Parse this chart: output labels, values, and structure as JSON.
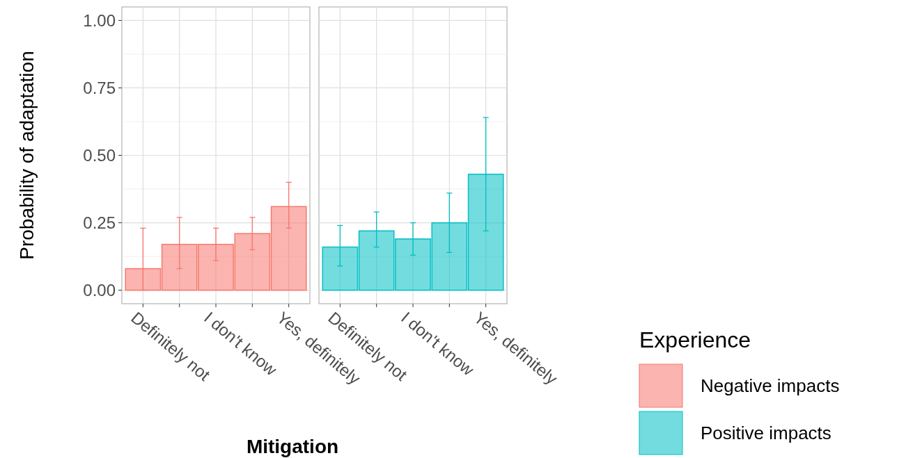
{
  "chart_data": [
    {
      "type": "bar",
      "ylabel": "Probability of adaptation",
      "xlabel": "Mitigation",
      "legend_title": "Experience",
      "legend": "bottom right",
      "grid": true,
      "categories": [
        "Definitely not",
        null,
        "I don't know",
        null,
        "Yes, definitely"
      ],
      "ylim": [
        -0.05,
        1.05
      ],
      "yticks": [
        {
          "value": 0,
          "label": "0.00"
        },
        {
          "value": 0.25,
          "label": "0.25"
        },
        {
          "value": 0.5,
          "label": "0.50"
        },
        {
          "value": 0.75,
          "label": "0.75"
        },
        {
          "value": 1,
          "label": "1.00"
        }
      ],
      "series": [
        {
          "name": "Negative impacts",
          "color": "#f8766d",
          "values": [
            0.08,
            0.17,
            0.17,
            0.21,
            0.31
          ],
          "errors": [
            [
              0,
              0.23
            ],
            [
              0.08,
              0.27
            ],
            [
              0.11,
              0.23
            ],
            [
              0.15,
              0.27
            ],
            [
              0.23,
              0.4
            ]
          ]
        }
      ]
    },
    {
      "type": "bar",
      "legend": "bottom right",
      "grid": true,
      "tick_labels": "x",
      "categories": [
        "Definitely not",
        null,
        "I don't know",
        null,
        "Yes, definitely"
      ],
      "ylim": [
        -0.05,
        1.05
      ],
      "yticks": [
        0,
        0.25,
        0.5,
        0.75,
        1
      ],
      "series": [
        {
          "name": "Positive impacts",
          "color": "#00bfc4",
          "values": [
            0.16,
            0.22,
            0.19,
            0.25,
            0.43
          ],
          "errors": [
            [
              0.09,
              0.24
            ],
            [
              0.16,
              0.29
            ],
            [
              0.13,
              0.25
            ],
            [
              0.14,
              0.36
            ],
            [
              0.22,
              0.64
            ]
          ]
        }
      ]
    }
  ]
}
